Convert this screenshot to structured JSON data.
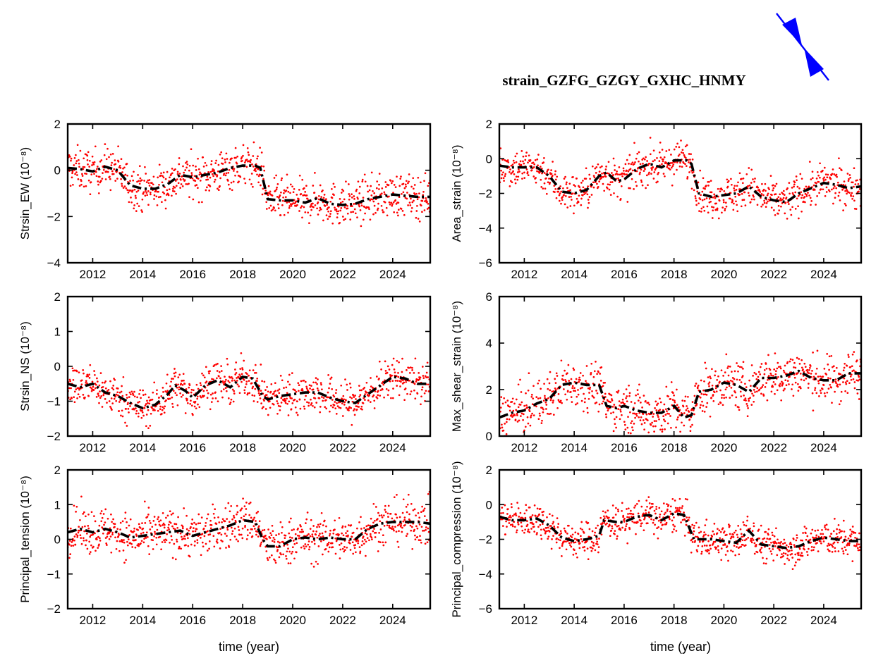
{
  "figure": {
    "title": "strain_GZFG_GZGY_GXHC_HNMY",
    "xlabel": "time (year)",
    "colors": {
      "points": "#ff0000",
      "trend": "#000000",
      "arrow": "#0000ff"
    },
    "icon": "principal-compression-arrow-icon"
  },
  "chart_data": [
    {
      "type": "scatter",
      "panel": "top-left",
      "ylabel": "Strsin_EW (10⁻⁸)",
      "xlim": [
        2011,
        2025.5
      ],
      "ylim": [
        -4,
        2
      ],
      "xticks": [
        2012,
        2014,
        2016,
        2018,
        2020,
        2022,
        2024
      ],
      "yticks": [
        -4,
        -2,
        0,
        2
      ],
      "noise": 0.45,
      "trend": [
        [
          2011,
          0.1
        ],
        [
          2011.5,
          0.05
        ],
        [
          2012,
          -0.05
        ],
        [
          2012.5,
          0.15
        ],
        [
          2013,
          0.0
        ],
        [
          2013.5,
          -0.65
        ],
        [
          2014,
          -0.8
        ],
        [
          2014.5,
          -0.8
        ],
        [
          2015,
          -0.6
        ],
        [
          2015.5,
          -0.2
        ],
        [
          2016,
          -0.3
        ],
        [
          2016.5,
          -0.2
        ],
        [
          2017,
          -0.1
        ],
        [
          2017.5,
          0.1
        ],
        [
          2018,
          0.2
        ],
        [
          2018.5,
          0.2
        ],
        [
          2018.7,
          0.1
        ],
        [
          2019,
          -1.25
        ],
        [
          2019.5,
          -1.3
        ],
        [
          2020,
          -1.3
        ],
        [
          2020.5,
          -1.4
        ],
        [
          2021,
          -1.2
        ],
        [
          2021.5,
          -1.45
        ],
        [
          2022,
          -1.5
        ],
        [
          2022.5,
          -1.45
        ],
        [
          2023,
          -1.25
        ],
        [
          2023.5,
          -1.15
        ],
        [
          2024,
          -1.05
        ],
        [
          2024.5,
          -1.1
        ],
        [
          2025,
          -1.15
        ],
        [
          2025.5,
          -1.15
        ]
      ]
    },
    {
      "type": "scatter",
      "panel": "top-right",
      "ylabel": "Area_strain (10⁻⁸)",
      "xlim": [
        2011,
        2025.5
      ],
      "ylim": [
        -6,
        2
      ],
      "xticks": [
        2012,
        2014,
        2016,
        2018,
        2020,
        2022,
        2024
      ],
      "yticks": [
        -6,
        -4,
        -2,
        0,
        2
      ],
      "noise": 0.55,
      "trend": [
        [
          2011,
          -0.4
        ],
        [
          2011.5,
          -0.5
        ],
        [
          2012,
          -0.5
        ],
        [
          2012.5,
          -0.5
        ],
        [
          2013,
          -1.0
        ],
        [
          2013.5,
          -1.9
        ],
        [
          2014,
          -2.0
        ],
        [
          2014.5,
          -1.8
        ],
        [
          2015,
          -1.0
        ],
        [
          2015.3,
          -0.8
        ],
        [
          2015.7,
          -1.3
        ],
        [
          2016,
          -1.2
        ],
        [
          2016.5,
          -0.6
        ],
        [
          2017,
          -0.3
        ],
        [
          2017.5,
          -0.5
        ],
        [
          2018,
          -0.1
        ],
        [
          2018.5,
          -0.1
        ],
        [
          2018.7,
          -0.3
        ],
        [
          2019,
          -2.0
        ],
        [
          2019.5,
          -2.2
        ],
        [
          2020,
          -2.1
        ],
        [
          2020.5,
          -2.0
        ],
        [
          2021,
          -1.6
        ],
        [
          2021.5,
          -2.2
        ],
        [
          2022,
          -2.4
        ],
        [
          2022.5,
          -2.5
        ],
        [
          2023,
          -2.0
        ],
        [
          2023.5,
          -1.7
        ],
        [
          2024,
          -1.4
        ],
        [
          2024.5,
          -1.5
        ],
        [
          2025,
          -1.7
        ],
        [
          2025.5,
          -1.6
        ]
      ]
    },
    {
      "type": "scatter",
      "panel": "middle-left",
      "ylabel": "Strsin_NS (10⁻⁸)",
      "xlim": [
        2011,
        2025.5
      ],
      "ylim": [
        -2,
        2
      ],
      "xticks": [
        2012,
        2014,
        2016,
        2018,
        2020,
        2022,
        2024
      ],
      "yticks": [
        -2,
        -1,
        0,
        1,
        2
      ],
      "noise": 0.28,
      "trend": [
        [
          2011,
          -0.5
        ],
        [
          2011.5,
          -0.6
        ],
        [
          2012,
          -0.5
        ],
        [
          2012.5,
          -0.75
        ],
        [
          2013,
          -0.85
        ],
        [
          2013.5,
          -1.05
        ],
        [
          2014,
          -1.2
        ],
        [
          2014.5,
          -1.1
        ],
        [
          2015,
          -0.8
        ],
        [
          2015.3,
          -0.55
        ],
        [
          2015.7,
          -0.7
        ],
        [
          2016,
          -0.9
        ],
        [
          2016.5,
          -0.55
        ],
        [
          2017,
          -0.4
        ],
        [
          2017.5,
          -0.6
        ],
        [
          2018,
          -0.3
        ],
        [
          2018.4,
          -0.35
        ],
        [
          2018.8,
          -0.85
        ],
        [
          2019,
          -0.95
        ],
        [
          2019.5,
          -0.85
        ],
        [
          2020,
          -0.8
        ],
        [
          2020.5,
          -0.75
        ],
        [
          2021,
          -0.75
        ],
        [
          2021.5,
          -0.9
        ],
        [
          2022,
          -1.0
        ],
        [
          2022.5,
          -1.05
        ],
        [
          2023,
          -0.8
        ],
        [
          2023.5,
          -0.55
        ],
        [
          2024,
          -0.3
        ],
        [
          2024.5,
          -0.35
        ],
        [
          2025,
          -0.5
        ],
        [
          2025.5,
          -0.5
        ]
      ]
    },
    {
      "type": "scatter",
      "panel": "middle-right",
      "ylabel": "Max_shear_strain (10⁻⁸)",
      "xlim": [
        2011,
        2025.5
      ],
      "ylim": [
        0,
        6
      ],
      "xticks": [
        2012,
        2014,
        2016,
        2018,
        2020,
        2022,
        2024
      ],
      "yticks": [
        0,
        2,
        4,
        6
      ],
      "noise": 0.5,
      "trend": [
        [
          2011,
          0.8
        ],
        [
          2011.5,
          1.0
        ],
        [
          2012,
          1.1
        ],
        [
          2012.5,
          1.4
        ],
        [
          2013,
          1.6
        ],
        [
          2013.5,
          2.2
        ],
        [
          2014,
          2.3
        ],
        [
          2014.5,
          2.2
        ],
        [
          2015,
          2.2
        ],
        [
          2015.3,
          1.3
        ],
        [
          2015.7,
          1.2
        ],
        [
          2016,
          1.3
        ],
        [
          2016.5,
          1.1
        ],
        [
          2017,
          1.0
        ],
        [
          2017.5,
          1.0
        ],
        [
          2018,
          1.3
        ],
        [
          2018.4,
          0.8
        ],
        [
          2018.7,
          0.9
        ],
        [
          2019,
          1.9
        ],
        [
          2019.5,
          2.0
        ],
        [
          2020,
          2.3
        ],
        [
          2020.5,
          2.2
        ],
        [
          2021,
          1.9
        ],
        [
          2021.5,
          2.5
        ],
        [
          2022,
          2.5
        ],
        [
          2022.5,
          2.6
        ],
        [
          2023,
          2.8
        ],
        [
          2023.5,
          2.5
        ],
        [
          2024,
          2.4
        ],
        [
          2024.5,
          2.4
        ],
        [
          2025,
          2.7
        ],
        [
          2025.5,
          2.7
        ]
      ]
    },
    {
      "type": "scatter",
      "panel": "bottom-left",
      "ylabel": "Principal_tension (10⁻⁸)",
      "xlim": [
        2011,
        2025.5
      ],
      "ylim": [
        -2,
        2
      ],
      "xticks": [
        2012,
        2014,
        2016,
        2018,
        2020,
        2022,
        2024
      ],
      "yticks": [
        -2,
        -1,
        0,
        1,
        2
      ],
      "noise": 0.32,
      "trend": [
        [
          2011,
          0.2
        ],
        [
          2011.5,
          0.3
        ],
        [
          2012,
          0.2
        ],
        [
          2012.5,
          0.3
        ],
        [
          2013,
          0.2
        ],
        [
          2013.5,
          0.05
        ],
        [
          2014,
          0.1
        ],
        [
          2014.5,
          0.15
        ],
        [
          2015,
          0.2
        ],
        [
          2015.5,
          0.25
        ],
        [
          2016,
          0.1
        ],
        [
          2016.5,
          0.2
        ],
        [
          2017,
          0.3
        ],
        [
          2017.5,
          0.4
        ],
        [
          2018,
          0.55
        ],
        [
          2018.5,
          0.5
        ],
        [
          2018.8,
          0.0
        ],
        [
          2019,
          -0.2
        ],
        [
          2019.5,
          -0.2
        ],
        [
          2020,
          0.0
        ],
        [
          2020.5,
          0.05
        ],
        [
          2021,
          0.0
        ],
        [
          2021.5,
          0.05
        ],
        [
          2022,
          0.0
        ],
        [
          2022.5,
          0.0
        ],
        [
          2023,
          0.3
        ],
        [
          2023.5,
          0.45
        ],
        [
          2024,
          0.5
        ],
        [
          2024.5,
          0.5
        ],
        [
          2025,
          0.5
        ],
        [
          2025.5,
          0.45
        ]
      ]
    },
    {
      "type": "scatter",
      "panel": "bottom-right",
      "ylabel": "Principal_compression (10⁻⁸)",
      "xlim": [
        2011,
        2025.5
      ],
      "ylim": [
        -6,
        2
      ],
      "xticks": [
        2012,
        2014,
        2016,
        2018,
        2020,
        2022,
        2024
      ],
      "yticks": [
        -6,
        -4,
        -2,
        0,
        2
      ],
      "noise": 0.5,
      "trend": [
        [
          2011,
          -0.7
        ],
        [
          2011.5,
          -0.9
        ],
        [
          2012,
          -0.9
        ],
        [
          2012.5,
          -0.8
        ],
        [
          2013,
          -1.2
        ],
        [
          2013.5,
          -1.9
        ],
        [
          2014,
          -2.1
        ],
        [
          2014.5,
          -2.0
        ],
        [
          2015,
          -1.8
        ],
        [
          2015.2,
          -0.9
        ],
        [
          2015.7,
          -1.0
        ],
        [
          2016,
          -1.0
        ],
        [
          2016.5,
          -0.7
        ],
        [
          2017,
          -0.6
        ],
        [
          2017.5,
          -0.9
        ],
        [
          2018,
          -0.5
        ],
        [
          2018.4,
          -0.6
        ],
        [
          2018.8,
          -2.0
        ],
        [
          2019,
          -2.0
        ],
        [
          2019.5,
          -2.0
        ],
        [
          2020,
          -2.1
        ],
        [
          2020.5,
          -2.2
        ],
        [
          2021,
          -1.5
        ],
        [
          2021.5,
          -2.3
        ],
        [
          2022,
          -2.4
        ],
        [
          2022.5,
          -2.5
        ],
        [
          2023,
          -2.4
        ],
        [
          2023.5,
          -2.1
        ],
        [
          2024,
          -1.9
        ],
        [
          2024.5,
          -2.0
        ],
        [
          2025,
          -2.1
        ],
        [
          2025.5,
          -2.1
        ]
      ]
    }
  ]
}
